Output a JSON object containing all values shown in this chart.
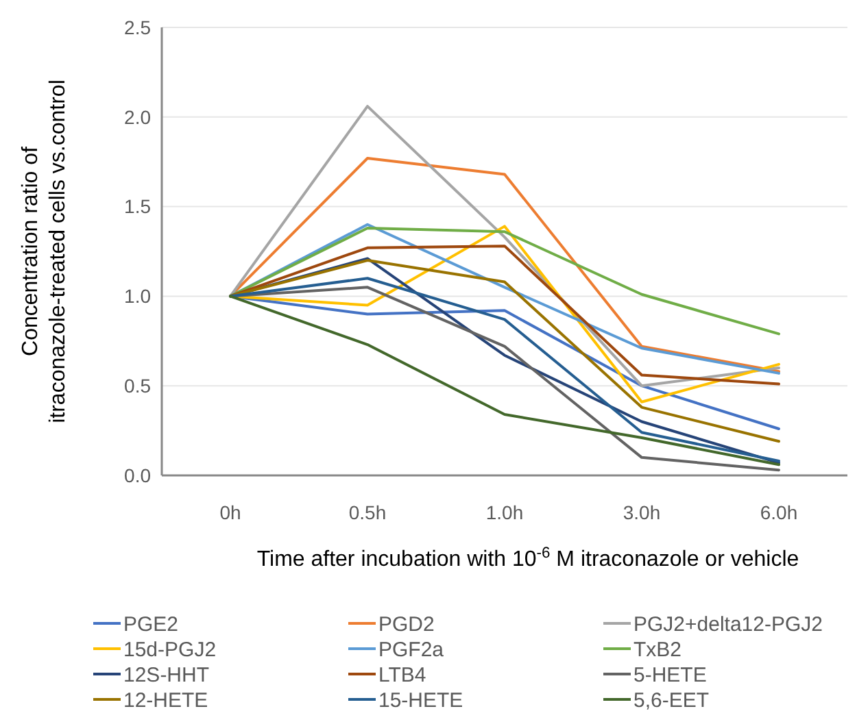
{
  "chart_data": {
    "type": "line",
    "xlabel": "Time after incubation with 10$^{-6}$ M itraconazole or vehicle",
    "ylabel": "Concentration ratio of itraconazole-treated cells vs.control",
    "categories": [
      "0h",
      "0.5h",
      "1.0h",
      "3.0h",
      "6.0h"
    ],
    "ylim": [
      0,
      2.5
    ],
    "yticks": [
      {
        "value": 0,
        "label": "0.0"
      },
      {
        "value": 0.5,
        "label": "0.5"
      },
      {
        "value": 1,
        "label": "1.0"
      },
      {
        "value": 1.5,
        "label": "1.5"
      },
      {
        "value": 2,
        "label": "2.0"
      },
      {
        "value": 2.5,
        "label": "2.5"
      }
    ],
    "grid": "y",
    "legend": "bottom",
    "marker": "none",
    "line_style": "solid",
    "series": [
      {
        "name": "PGE2",
        "color": "#4472c4",
        "values": [
          1,
          0.9,
          0.92,
          0.5,
          0.26
        ]
      },
      {
        "name": "PGD2",
        "color": "#ed7d31",
        "values": [
          1,
          1.77,
          1.68,
          0.72,
          0.58
        ]
      },
      {
        "name": "PGJ2+delta12-PGJ2",
        "color": "#a5a5a5",
        "values": [
          1,
          2.06,
          1.33,
          0.5,
          0.6
        ]
      },
      {
        "name": "15d-PGJ2",
        "color": "#ffc000",
        "values": [
          1,
          0.95,
          1.39,
          0.41,
          0.62
        ]
      },
      {
        "name": "PGF2a",
        "color": "#5b9bd5",
        "values": [
          1,
          1.4,
          1.05,
          0.71,
          0.57
        ]
      },
      {
        "name": "TxB2",
        "color": "#70ad47",
        "values": [
          1,
          1.38,
          1.36,
          1.01,
          0.79
        ]
      },
      {
        "name": "12S-HHT",
        "color": "#264478",
        "values": [
          1,
          1.21,
          0.67,
          0.3,
          0.07
        ]
      },
      {
        "name": "LTB4",
        "color": "#9e480e",
        "values": [
          1,
          1.27,
          1.28,
          0.56,
          0.51
        ]
      },
      {
        "name": "5-HETE",
        "color": "#636363",
        "values": [
          1,
          1.05,
          0.72,
          0.1,
          0.03
        ]
      },
      {
        "name": "12-HETE",
        "color": "#997300",
        "values": [
          1,
          1.2,
          1.08,
          0.38,
          0.19
        ]
      },
      {
        "name": "15-HETE",
        "color": "#255e91",
        "values": [
          1,
          1.1,
          0.87,
          0.24,
          0.08
        ]
      },
      {
        "name": "5,6-EET",
        "color": "#43682b",
        "values": [
          1,
          0.73,
          0.34,
          0.21,
          0.06
        ]
      }
    ]
  }
}
